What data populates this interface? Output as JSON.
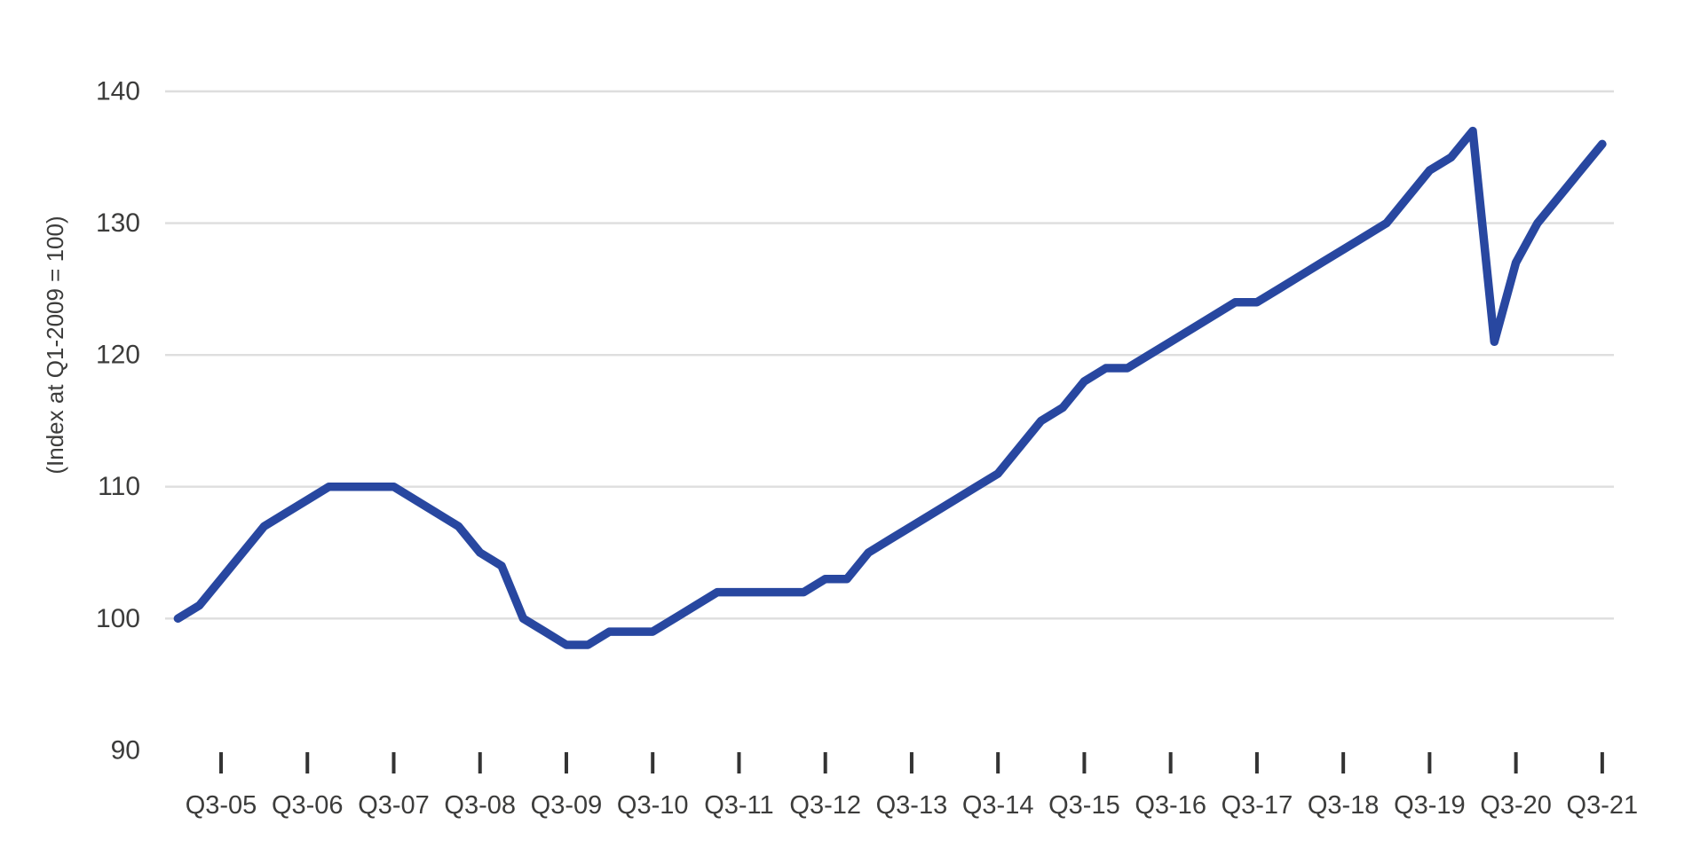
{
  "chart_data": {
    "type": "line",
    "title": "",
    "xlabel": "",
    "ylabel": "(Index at Q1-2009 = 100)",
    "ylim": [
      90,
      140
    ],
    "grid": "horizontal",
    "legend": "none",
    "frequency": "quarterly",
    "start_quarter": "Q1-05",
    "end_quarter": "Q3-21",
    "quarters": [
      "Q1-05",
      "Q2-05",
      "Q3-05",
      "Q4-05",
      "Q1-06",
      "Q2-06",
      "Q3-06",
      "Q4-06",
      "Q1-07",
      "Q2-07",
      "Q3-07",
      "Q4-07",
      "Q1-08",
      "Q2-08",
      "Q3-08",
      "Q4-08",
      "Q1-09",
      "Q2-09",
      "Q3-09",
      "Q4-09",
      "Q1-10",
      "Q2-10",
      "Q3-10",
      "Q4-10",
      "Q1-11",
      "Q2-11",
      "Q3-11",
      "Q4-11",
      "Q1-12",
      "Q2-12",
      "Q3-12",
      "Q4-12",
      "Q1-13",
      "Q2-13",
      "Q3-13",
      "Q4-13",
      "Q1-14",
      "Q2-14",
      "Q3-14",
      "Q4-14",
      "Q1-15",
      "Q2-15",
      "Q3-15",
      "Q4-15",
      "Q1-16",
      "Q2-16",
      "Q3-16",
      "Q4-16",
      "Q1-17",
      "Q2-17",
      "Q3-17",
      "Q4-17",
      "Q1-18",
      "Q2-18",
      "Q3-18",
      "Q4-18",
      "Q1-19",
      "Q2-19",
      "Q3-19",
      "Q4-19",
      "Q1-20",
      "Q2-20",
      "Q3-20",
      "Q4-20",
      "Q1-21",
      "Q2-21",
      "Q3-21"
    ],
    "values": [
      100,
      101,
      103,
      105,
      107,
      108,
      109,
      110,
      110,
      110,
      110,
      109,
      108,
      107,
      105,
      104,
      100,
      99,
      98,
      98,
      99,
      99,
      99,
      100,
      101,
      102,
      102,
      102,
      102,
      102,
      103,
      103,
      105,
      106,
      107,
      108,
      109,
      110,
      111,
      113,
      115,
      116,
      118,
      119,
      119,
      120,
      121,
      122,
      123,
      124,
      124,
      125,
      126,
      127,
      128,
      129,
      130,
      132,
      134,
      135,
      137,
      121,
      127,
      130,
      132,
      134,
      136
    ],
    "series_name": "Index (Q1-2009 = 100)"
  },
  "y_axis": {
    "label": "(Index at Q1-2009 = 100)",
    "ticks": [
      90,
      100,
      110,
      120,
      130,
      140
    ],
    "gridlines": [
      100,
      110,
      120,
      130,
      140
    ]
  },
  "x_axis": {
    "tick_labels": [
      "Q3-05",
      "Q3-06",
      "Q3-07",
      "Q3-08",
      "Q3-09",
      "Q3-10",
      "Q3-11",
      "Q3-12",
      "Q3-13",
      "Q3-14",
      "Q3-15",
      "Q3-16",
      "Q3-17",
      "Q3-18",
      "Q3-19",
      "Q3-20",
      "Q3-21"
    ]
  },
  "colors": {
    "line": "#2847a0",
    "gridline": "#dedede",
    "tick_mark": "#333333",
    "text": "#3c3c3b",
    "background": "#ffffff"
  }
}
